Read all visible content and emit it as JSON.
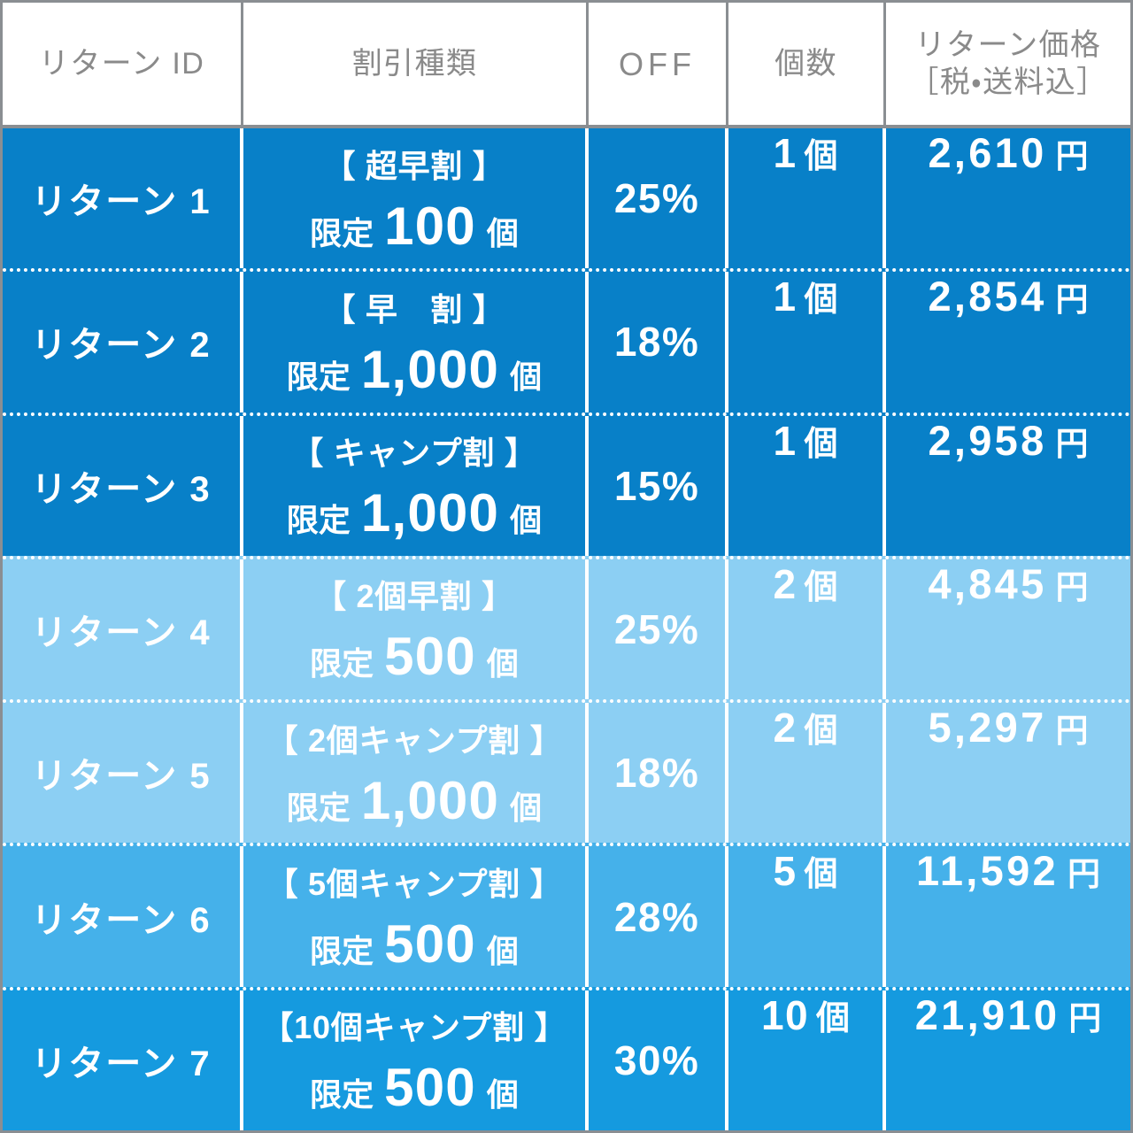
{
  "colors": {
    "tier_dark": "#0880c8",
    "tier_light": "#8ccff3",
    "tier_mid": "#45b1ea",
    "tier_mid_dark": "#159adf",
    "header_text": "#8a8a8a",
    "grid_gray": "#8a8e92",
    "cell_text": "#ffffff"
  },
  "header": {
    "id": "リターン ID",
    "discount_type": "割引種類",
    "off": "OFF",
    "quantity": "個数",
    "price_line1": "リターン価格",
    "price_line2": "［税・送料込］"
  },
  "rows": [
    {
      "id": "リターン 1",
      "label": "【 超早割 】",
      "limit_prefix": "限定",
      "limit_count": "100",
      "limit_unit": "個",
      "off": "25%",
      "qty": "1",
      "qty_unit": "個",
      "price": "2,610",
      "price_unit": "円"
    },
    {
      "id": "リターン 2",
      "label": "【 早　割 】",
      "limit_prefix": "限定",
      "limit_count": "1,000",
      "limit_unit": "個",
      "off": "18%",
      "qty": "1",
      "qty_unit": "個",
      "price": "2,854",
      "price_unit": "円"
    },
    {
      "id": "リターン 3",
      "label": "【 キャンプ割 】",
      "limit_prefix": "限定",
      "limit_count": "1,000",
      "limit_unit": "個",
      "off": "15%",
      "qty": "1",
      "qty_unit": "個",
      "price": "2,958",
      "price_unit": "円"
    },
    {
      "id": "リターン 4",
      "label": "【 2個早割 】",
      "limit_prefix": "限定",
      "limit_count": "500",
      "limit_unit": "個",
      "off": "25%",
      "qty": "2",
      "qty_unit": "個",
      "price": "4,845",
      "price_unit": "円"
    },
    {
      "id": "リターン 5",
      "label": "【 2個キャンプ割 】",
      "limit_prefix": "限定",
      "limit_count": "1,000",
      "limit_unit": "個",
      "off": "18%",
      "qty": "2",
      "qty_unit": "個",
      "price": "5,297",
      "price_unit": "円"
    },
    {
      "id": "リターン 6",
      "label": "【 5個キャンプ割 】",
      "limit_prefix": "限定",
      "limit_count": "500",
      "limit_unit": "個",
      "off": "28%",
      "qty": "5",
      "qty_unit": "個",
      "price": "11,592",
      "price_unit": "円"
    },
    {
      "id": "リターン 7",
      "label": "【10個キャンプ割 】",
      "limit_prefix": "限定",
      "limit_count": "500",
      "limit_unit": "個",
      "off": "30%",
      "qty": "10",
      "qty_unit": "個",
      "price": "21,910",
      "price_unit": "円"
    }
  ],
  "chart_data": {
    "type": "table",
    "title": "リターン価格表",
    "columns": [
      "リターン ID",
      "割引種類",
      "OFF",
      "個数",
      "リターン価格［税・送料込］"
    ],
    "rows": [
      [
        "リターン 1",
        "【超早割】限定 100 個",
        "25%",
        "1個",
        "2,610 円"
      ],
      [
        "リターン 2",
        "【早 割】限定 1,000 個",
        "18%",
        "1個",
        "2,854 円"
      ],
      [
        "リターン 3",
        "【キャンプ割】限定 1,000 個",
        "15%",
        "1個",
        "2,958 円"
      ],
      [
        "リターン 4",
        "【2個早割】限定 500 個",
        "25%",
        "2個",
        "4,845 円"
      ],
      [
        "リターン 5",
        "【2個キャンプ割】限定 1,000 個",
        "18%",
        "2個",
        "5,297 円"
      ],
      [
        "リターン 6",
        "【5個キャンプ割】限定 500 個",
        "28%",
        "5個",
        "11,592 円"
      ],
      [
        "リターン 7",
        "【10個キャンプ割】限定 500 個",
        "30%",
        "10個",
        "21,910 円"
      ]
    ]
  }
}
